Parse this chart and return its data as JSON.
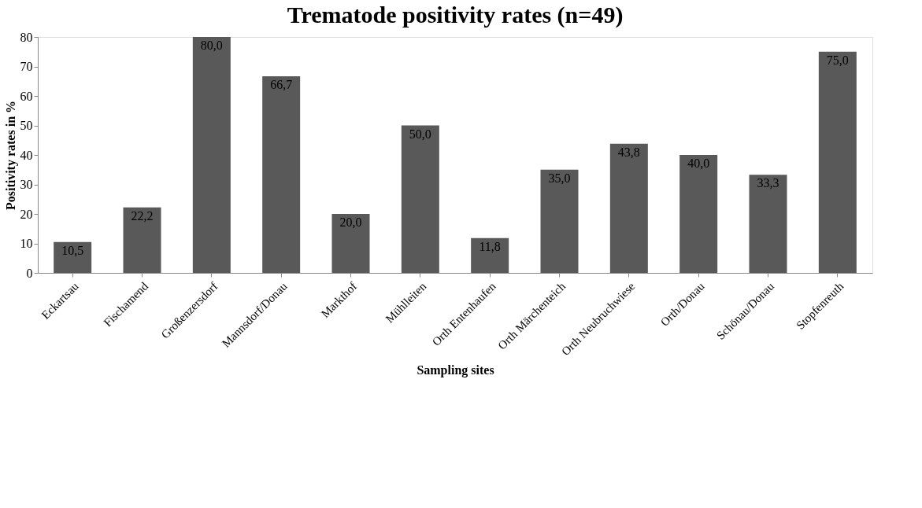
{
  "chart_data": {
    "type": "bar",
    "title": "Trematode positivity rates (n=49)",
    "xlabel": "Sampling sites",
    "ylabel": "Positivity rates in %",
    "categories": [
      "Eckartsau",
      "Fischamend",
      "Großenzersdorf",
      "Mannsdorf/Donau",
      "Markthof",
      "Mühlleiten",
      "Orth Entenhaufen",
      "Orth Märchenteich",
      "Orth Neubruchwiese",
      "Orth/Donau",
      "Schönau/Donau",
      "Stopfenreuth"
    ],
    "values": [
      10.5,
      22.2,
      80.0,
      66.7,
      20.0,
      50.0,
      11.8,
      35.0,
      43.8,
      40.0,
      33.3,
      75.0
    ],
    "value_labels": [
      "10,5",
      "22,2",
      "80,0",
      "66,7",
      "20,0",
      "50,0",
      "11,8",
      "35,0",
      "43,8",
      "40,0",
      "33,3",
      "75,0"
    ],
    "color": "#595959",
    "ylim": [
      0,
      80
    ],
    "yticks": [
      0,
      10,
      20,
      30,
      40,
      50,
      60,
      70,
      80
    ],
    "grid": false
  }
}
